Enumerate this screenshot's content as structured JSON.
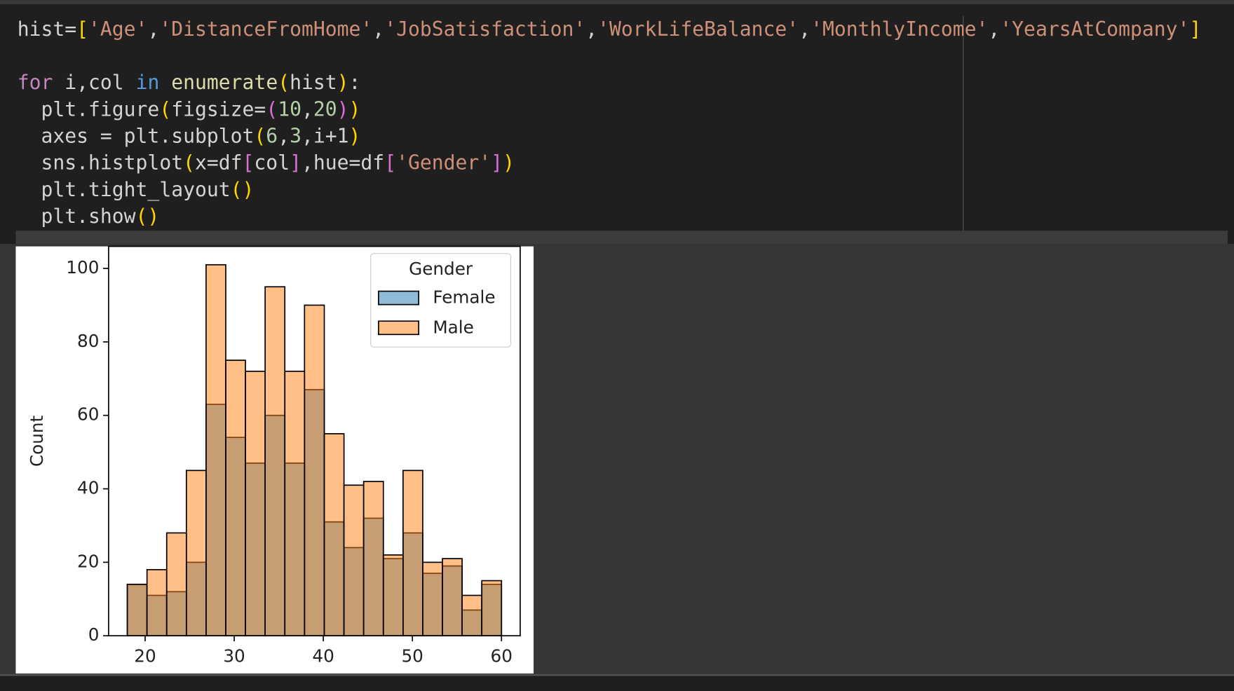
{
  "code": [
    [
      {
        "text": "hist=",
        "color": "#d4d4d4"
      },
      {
        "text": "[",
        "color": "#ffd700"
      },
      {
        "text": "'Age'",
        "color": "#ce9178"
      },
      {
        "text": ",",
        "color": "#d4d4d4"
      },
      {
        "text": "'DistanceFromHome'",
        "color": "#ce9178"
      },
      {
        "text": ",",
        "color": "#d4d4d4"
      },
      {
        "text": "'JobSatisfaction'",
        "color": "#ce9178"
      },
      {
        "text": ",",
        "color": "#d4d4d4"
      },
      {
        "text": "'WorkLifeBalance'",
        "color": "#ce9178"
      },
      {
        "text": ",",
        "color": "#d4d4d4"
      },
      {
        "text": "'MonthlyIncome'",
        "color": "#ce9178"
      },
      {
        "text": ",",
        "color": "#d4d4d4"
      },
      {
        "text": "'YearsAtCompany'",
        "color": "#ce9178"
      },
      {
        "text": "]",
        "color": "#ffd700"
      }
    ],
    [],
    [
      {
        "text": "for",
        "color": "#c586c0"
      },
      {
        "text": " i,col ",
        "color": "#d4d4d4"
      },
      {
        "text": "in",
        "color": "#569cd6"
      },
      {
        "text": " ",
        "color": "#d4d4d4"
      },
      {
        "text": "enumerate",
        "color": "#dcdcaa"
      },
      {
        "text": "(",
        "color": "#ffd700"
      },
      {
        "text": "hist",
        "color": "#d4d4d4"
      },
      {
        "text": ")",
        "color": "#ffd700"
      },
      {
        "text": ":",
        "color": "#d4d4d4"
      }
    ],
    [
      {
        "text": "  plt.figure",
        "color": "#d4d4d4"
      },
      {
        "text": "(",
        "color": "#ffd700"
      },
      {
        "text": "figsize=",
        "color": "#d4d4d4"
      },
      {
        "text": "(",
        "color": "#da70d6"
      },
      {
        "text": "10",
        "color": "#b5cea8"
      },
      {
        "text": ",",
        "color": "#d4d4d4"
      },
      {
        "text": "20",
        "color": "#b5cea8"
      },
      {
        "text": ")",
        "color": "#da70d6"
      },
      {
        "text": ")",
        "color": "#ffd700"
      }
    ],
    [
      {
        "text": "  axes = plt.subplot",
        "color": "#d4d4d4"
      },
      {
        "text": "(",
        "color": "#ffd700"
      },
      {
        "text": "6",
        "color": "#b5cea8"
      },
      {
        "text": ",",
        "color": "#d4d4d4"
      },
      {
        "text": "3",
        "color": "#b5cea8"
      },
      {
        "text": ",i+1",
        "color": "#d4d4d4"
      },
      {
        "text": ")",
        "color": "#ffd700"
      }
    ],
    [
      {
        "text": "  sns.histplot",
        "color": "#d4d4d4"
      },
      {
        "text": "(",
        "color": "#ffd700"
      },
      {
        "text": "x=df",
        "color": "#d4d4d4"
      },
      {
        "text": "[",
        "color": "#da70d6"
      },
      {
        "text": "col",
        "color": "#d4d4d4"
      },
      {
        "text": "]",
        "color": "#da70d6"
      },
      {
        "text": ",hue=df",
        "color": "#d4d4d4"
      },
      {
        "text": "[",
        "color": "#da70d6"
      },
      {
        "text": "'Gender'",
        "color": "#ce9178"
      },
      {
        "text": "]",
        "color": "#da70d6"
      },
      {
        "text": ")",
        "color": "#ffd700"
      }
    ],
    [
      {
        "text": "  plt.tight_layout",
        "color": "#d4d4d4"
      },
      {
        "text": "()",
        "color": "#ffd700"
      }
    ],
    [
      {
        "text": "  plt.show",
        "color": "#d4d4d4"
      },
      {
        "text": "()",
        "color": "#ffd700"
      }
    ]
  ],
  "chart_data": {
    "type": "histogram",
    "y_label": "Count",
    "legend_title": "Gender",
    "legend": "upper right",
    "alpha": 0.5,
    "bins": [
      18,
      20.21,
      22.42,
      24.63,
      26.84,
      29.05,
      31.26,
      33.47,
      35.68,
      37.89,
      40.11,
      42.32,
      44.53,
      46.74,
      48.95,
      51.16,
      53.37,
      55.58,
      57.79,
      60
    ],
    "series": [
      {
        "name": "Female",
        "color": "#1f77b4",
        "values": [
          14,
          11,
          12,
          20,
          63,
          54,
          47,
          60,
          47,
          67,
          31,
          24,
          32,
          21,
          28,
          17,
          19,
          7,
          14
        ]
      },
      {
        "name": "Male",
        "color": "#ff7f0e",
        "values": [
          14,
          18,
          28,
          45,
          101,
          75,
          72,
          95,
          72,
          90,
          55,
          41,
          42,
          22,
          45,
          20,
          21,
          11,
          15
        ]
      }
    ],
    "xlim": [
      15.9,
      62.1
    ],
    "ylim": [
      0,
      106
    ],
    "xticks": [
      20,
      30,
      40,
      50,
      60
    ],
    "yticks": [
      0,
      20,
      40,
      60,
      80,
      100
    ]
  }
}
